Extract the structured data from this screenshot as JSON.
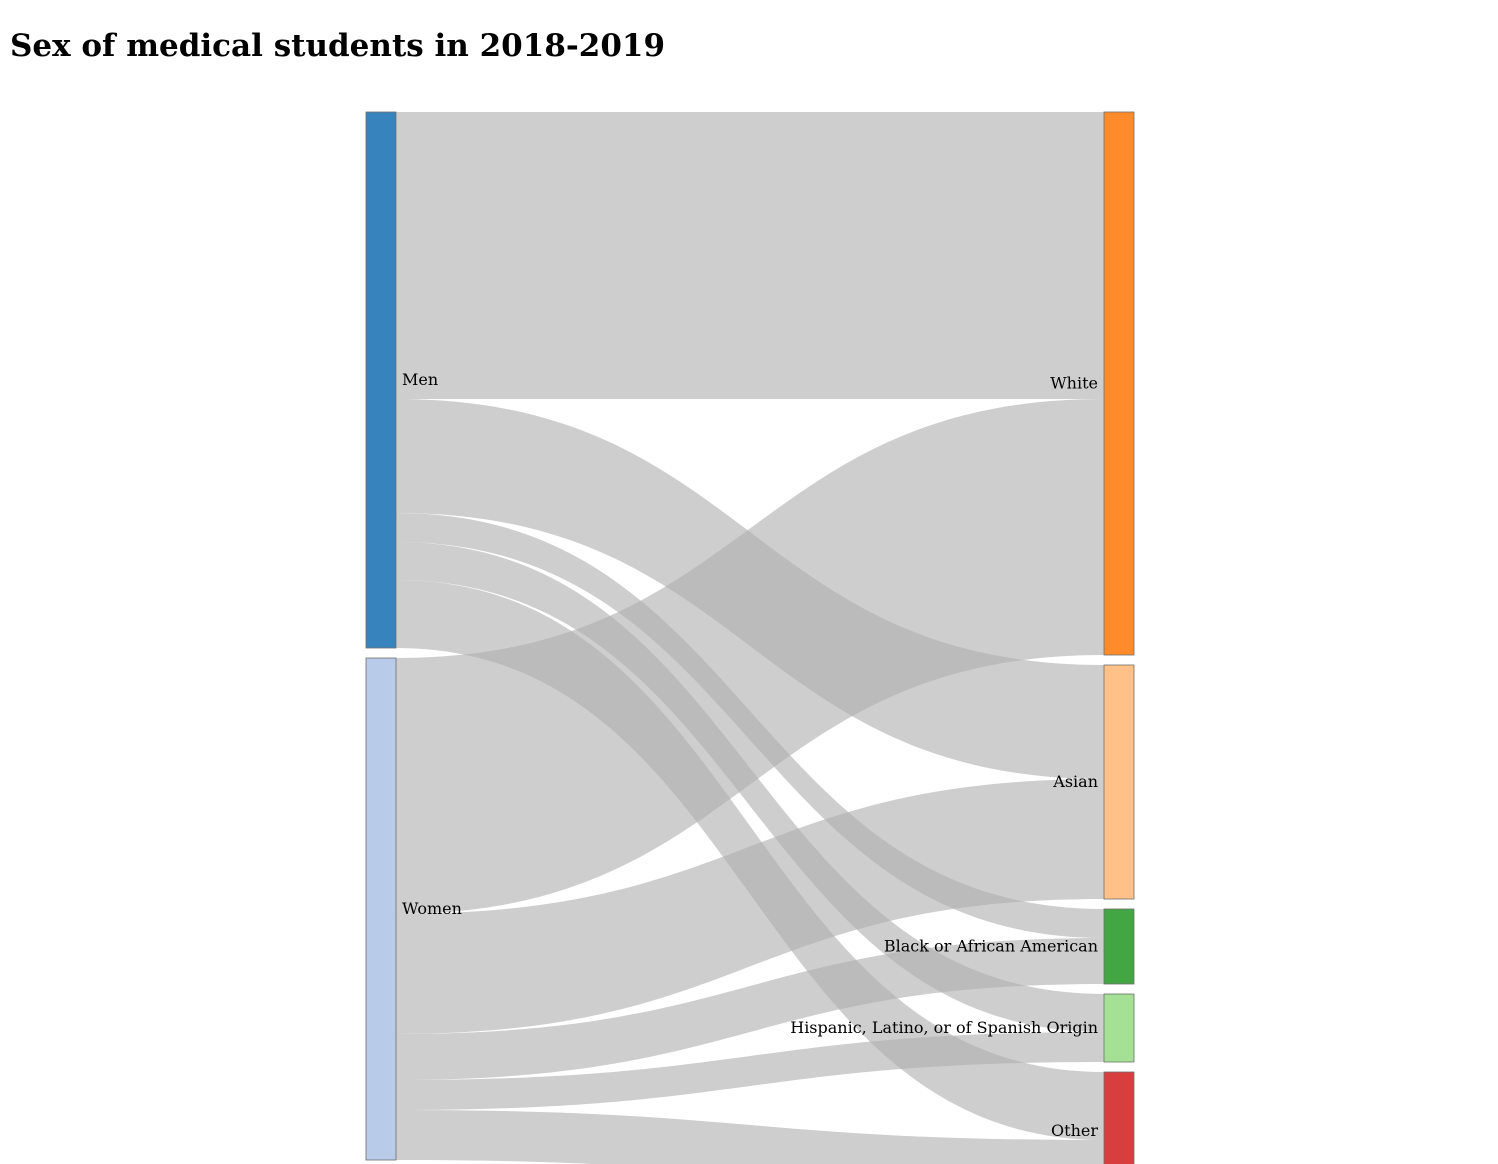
{
  "title": "Sex of medical students in 2018-2019",
  "chart_data": {
    "type": "sankey",
    "title": "Sex of medical students in 2018-2019",
    "link_color": "#b0b0b0",
    "source_nodes": [
      {
        "id": "men",
        "label": "Men",
        "color": "#3783bd"
      },
      {
        "id": "women",
        "label": "Women",
        "color": "#b8cbe8"
      }
    ],
    "target_nodes": [
      {
        "id": "white",
        "label": "White",
        "color": "#ff8b2b"
      },
      {
        "id": "asian",
        "label": "Asian",
        "color": "#ffc188"
      },
      {
        "id": "black",
        "label": "Black or African American",
        "color": "#42a642"
      },
      {
        "id": "hispanic",
        "label": "Hispanic, Latino, or of Spanish Origin",
        "color": "#a4e194"
      },
      {
        "id": "other",
        "label": "Other",
        "color": "#d93e3e"
      }
    ],
    "flows": [
      {
        "source": "men",
        "target": "white",
        "value": 287
      },
      {
        "source": "men",
        "target": "asian",
        "value": 114
      },
      {
        "source": "men",
        "target": "black",
        "value": 29
      },
      {
        "source": "men",
        "target": "hispanic",
        "value": 38
      },
      {
        "source": "men",
        "target": "other",
        "value": 68
      },
      {
        "source": "women",
        "target": "white",
        "value": 256
      },
      {
        "source": "women",
        "target": "asian",
        "value": 120
      },
      {
        "source": "women",
        "target": "black",
        "value": 46
      },
      {
        "source": "women",
        "target": "hispanic",
        "value": 30
      },
      {
        "source": "women",
        "target": "other",
        "value": 50
      }
    ]
  }
}
